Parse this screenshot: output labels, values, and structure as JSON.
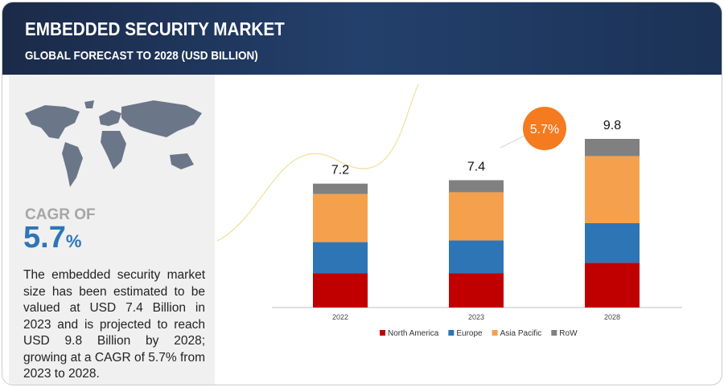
{
  "header": {
    "title": "EMBEDDED SECURITY MARKET",
    "subtitle": "GLOBAL FORECAST TO 2028 (USD BILLION)"
  },
  "summary": {
    "cagr_label": "CAGR OF",
    "cagr_value": "5.7",
    "cagr_unit": "%",
    "text": "The embedded security market size has been estimated to be valued at USD 7.4 Billion in 2023 and is projected to reach USD 9.8 Billion by 2028; growing at a CAGR of 5.7% from 2023 to 2028."
  },
  "chart_data": {
    "type": "stacked_bar",
    "categories": [
      "2022",
      "2023",
      "2028"
    ],
    "series": [
      {
        "name": "North America",
        "color": "#c00000",
        "values": [
          2.0,
          2.0,
          2.6
        ]
      },
      {
        "name": "Europe",
        "color": "#2e75b6",
        "values": [
          1.8,
          1.9,
          2.3
        ]
      },
      {
        "name": "Asia Pacific",
        "color": "#f5a04d",
        "values": [
          2.8,
          2.8,
          3.9
        ]
      },
      {
        "name": "RoW",
        "color": "#808080",
        "values": [
          0.6,
          0.7,
          1.0
        ]
      }
    ],
    "totals": [
      7.2,
      7.4,
      9.8
    ],
    "annotation": "5.7%",
    "legend": "bottom"
  }
}
